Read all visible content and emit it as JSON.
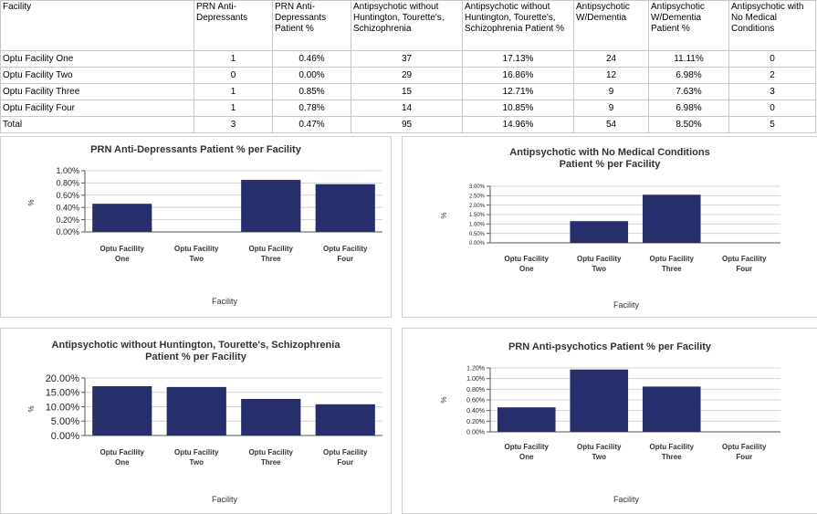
{
  "table": {
    "headers": [
      "Facility",
      "PRN Anti-Depressants",
      "PRN Anti-Depressants Patient %",
      "Antipsychotic without Huntington, Tourette's, Schizophrenia",
      "Antipsychotic without Huntington, Tourette's, Schizophrenia Patient %",
      "Antipsychotic W/Dementia",
      "Antipsychotic W/Dementia Patient %",
      "Antipsychotic with No Medical Conditions"
    ],
    "rows": [
      [
        "Optu Facility One",
        "1",
        "0.46%",
        "37",
        "17.13%",
        "24",
        "11.11%",
        "0"
      ],
      [
        "Optu Facility Two",
        "0",
        "0.00%",
        "29",
        "16.86%",
        "12",
        "6.98%",
        "2"
      ],
      [
        "Optu Facility Three",
        "1",
        "0.85%",
        "15",
        "12.71%",
        "9",
        "7.63%",
        "3"
      ],
      [
        "Optu Facility Four",
        "1",
        "0.78%",
        "14",
        "10.85%",
        "9",
        "6.98%",
        "0"
      ],
      [
        "Total",
        "3",
        "0.47%",
        "95",
        "14.96%",
        "54",
        "8.50%",
        "5"
      ]
    ]
  },
  "chart_data": [
    {
      "type": "bar",
      "title": [
        "PRN Anti-Depressants Patient % per Facility"
      ],
      "categories": [
        [
          "Optu Facility",
          "One"
        ],
        [
          "Optu Facility",
          "Two"
        ],
        [
          "Optu Facility",
          "Three"
        ],
        [
          "Optu Facility",
          "Four"
        ]
      ],
      "values": [
        0.46,
        0.0,
        0.85,
        0.78
      ],
      "ticks": [
        "0.00%",
        "0.20%",
        "0.40%",
        "0.60%",
        "0.80%",
        "1.00%"
      ],
      "ylim": [
        0,
        1.0
      ],
      "xlabel": "Facility",
      "ylabel": "%",
      "grid": true,
      "bar_color": "#262f6b"
    },
    {
      "type": "bar",
      "title": [
        "Antipsychotic with No Medical Conditions",
        "Patient % per Facility"
      ],
      "categories": [
        [
          "Optu Facility",
          "One"
        ],
        [
          "Optu Facility",
          "Two"
        ],
        [
          "Optu Facility",
          "Three"
        ],
        [
          "Optu Facility",
          "Four"
        ]
      ],
      "values": [
        0.0,
        1.15,
        2.55,
        0.0
      ],
      "ticks": [
        "0.00%",
        "0.50%",
        "1.00%",
        "1.50%",
        "2.00%",
        "2.50%",
        "3.00%"
      ],
      "ylim": [
        0,
        3.0
      ],
      "xlabel": "Facility",
      "ylabel": "%",
      "grid": true,
      "bar_color": "#262f6b"
    },
    {
      "type": "bar",
      "title": [
        "Antipsychotic without Huntington, Tourette's, Schizophrenia",
        "Patient % per Facility"
      ],
      "categories": [
        [
          "Optu Facility",
          "One"
        ],
        [
          "Optu Facility",
          "Two"
        ],
        [
          "Optu Facility",
          "Three"
        ],
        [
          "Optu Facility",
          "Four"
        ]
      ],
      "values": [
        17.13,
        16.86,
        12.71,
        10.85
      ],
      "ticks": [
        "0.00%",
        "5.00%",
        "10.00%",
        "15.00%",
        "20.00%"
      ],
      "ylim": [
        0,
        20.0
      ],
      "xlabel": "Facility",
      "ylabel": "%",
      "grid": true,
      "bar_color": "#262f6b"
    },
    {
      "type": "bar",
      "title": [
        "PRN Anti-psychotics Patient % per Facility"
      ],
      "categories": [
        [
          "Optu Facility",
          "One"
        ],
        [
          "Optu Facility",
          "Two"
        ],
        [
          "Optu Facility",
          "Three"
        ],
        [
          "Optu Facility",
          "Four"
        ]
      ],
      "values": [
        0.46,
        1.17,
        0.85,
        0.0
      ],
      "ticks": [
        "0.00%",
        "0.20%",
        "0.40%",
        "0.60%",
        "0.80%",
        "1.00%",
        "1.20%"
      ],
      "ylim": [
        0,
        1.2
      ],
      "xlabel": "Facility",
      "ylabel": "%",
      "grid": true,
      "bar_color": "#262f6b"
    }
  ]
}
